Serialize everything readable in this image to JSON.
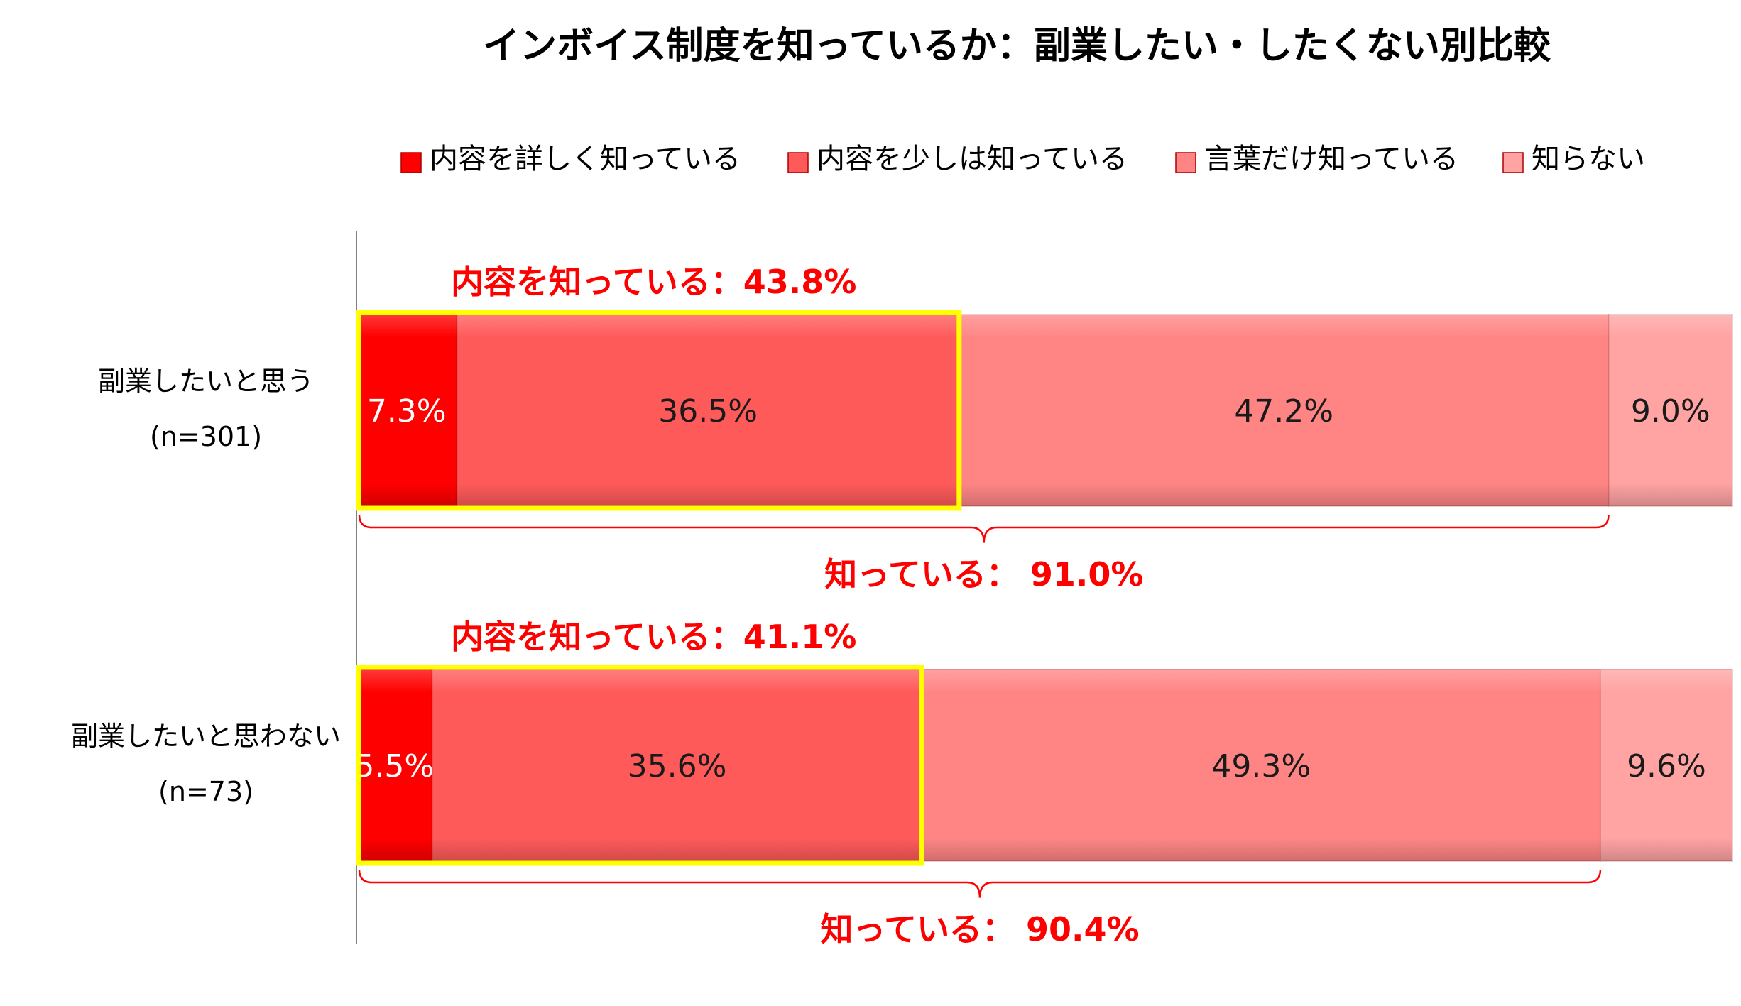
{
  "chart_data": {
    "type": "bar",
    "orientation": "horizontal",
    "stacked": true,
    "percent": true,
    "title": "インボイス制度を知っているか：副業したい・したくない別比較",
    "legend": {
      "placement": "top",
      "entries": [
        "内容を詳しく知っている",
        "内容を少しは知っている",
        "言葉だけ知っている",
        "知らない"
      ]
    },
    "categories": [
      "副業したいと思う",
      "副業したいと思わない"
    ],
    "category_counts": [
      "(n=301)",
      "(n=73)"
    ],
    "series": [
      {
        "name": "内容を詳しく知っている",
        "values": [
          7.3,
          5.5
        ],
        "labels": [
          "7.3%",
          "5.5%"
        ],
        "color": "#ff0000",
        "label_color": "#ffffff"
      },
      {
        "name": "内容を少しは知っている",
        "values": [
          36.5,
          35.6
        ],
        "labels": [
          "36.5%",
          "35.6%"
        ],
        "color": "#ff5a5a",
        "label_color": "#1a1a1a"
      },
      {
        "name": "言葉だけ知っている",
        "values": [
          47.2,
          49.3
        ],
        "labels": [
          "47.2%",
          "49.3%"
        ],
        "color": "#ff8585",
        "label_color": "#1a1a1a"
      },
      {
        "name": "知らない",
        "values": [
          9.0,
          9.6
        ],
        "labels": [
          "9.0%",
          "9.6%"
        ],
        "color": "#ffa3a3",
        "label_color": "#1a1a1a"
      }
    ],
    "xlim": [
      0,
      100
    ],
    "annotations": [
      {
        "text": "内容を知っている：43.8%",
        "value": 43.8,
        "spans_series": [
          0,
          1
        ]
      },
      {
        "text": "知っている： 91.0%",
        "value": 91.0,
        "spans_series": [
          0,
          1,
          2
        ]
      },
      {
        "text": "内容を知っている：41.1%",
        "value": 41.1,
        "spans_series": [
          0,
          1
        ]
      },
      {
        "text": "知っている： 90.4%",
        "value": 90.4,
        "spans_series": [
          0,
          1,
          2
        ]
      }
    ],
    "highlight_color": "#ffff00",
    "annotation_color": "#ff0000"
  }
}
